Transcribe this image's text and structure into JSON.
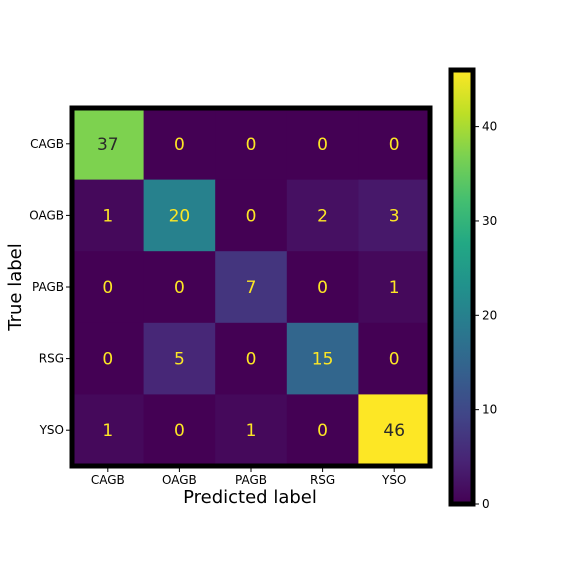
{
  "chart_data": {
    "type": "heatmap",
    "xlabel": "Predicted label",
    "ylabel": "True label",
    "x_categories": [
      "CAGB",
      "OAGB",
      "PAGB",
      "RSG",
      "YSO"
    ],
    "y_categories": [
      "CAGB",
      "OAGB",
      "PAGB",
      "RSG",
      "YSO"
    ],
    "matrix": [
      [
        37,
        0,
        0,
        0,
        0
      ],
      [
        1,
        20,
        0,
        2,
        3
      ],
      [
        0,
        0,
        7,
        0,
        1
      ],
      [
        0,
        5,
        0,
        15,
        0
      ],
      [
        1,
        0,
        1,
        0,
        46
      ]
    ],
    "colorbar": {
      "min": 0,
      "max": 46,
      "ticks": [
        0,
        10,
        20,
        30,
        40
      ],
      "colormap": "viridis"
    },
    "grid": false
  }
}
